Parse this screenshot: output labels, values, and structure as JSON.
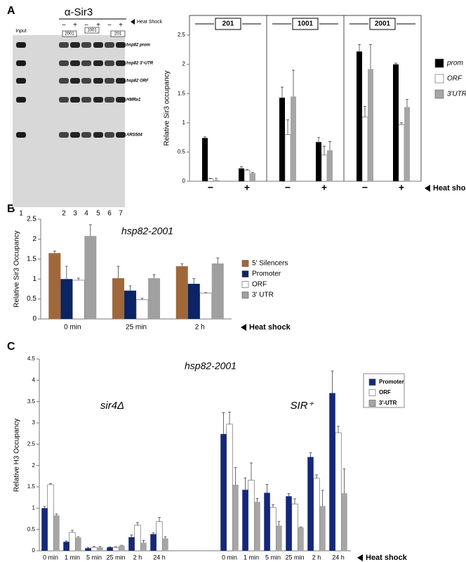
{
  "panels": [
    "A",
    "B",
    "C"
  ],
  "gel": {
    "antibody": "α-Sir3",
    "input": "Input",
    "heat_shock": "Heat Shock",
    "treatments": [
      "−",
      "+",
      "−",
      "+",
      "−",
      "+"
    ],
    "constructs": [
      "2001",
      "1001",
      "201"
    ],
    "bands": [
      "hsp82 prom",
      "hsp82 3'-UTR",
      "hsp82 ORF",
      "HMRa1",
      "ARS504"
    ],
    "lanes": [
      "1",
      "2",
      "3",
      "4",
      "5",
      "6",
      "7"
    ]
  },
  "chart_data": [
    {
      "type": "bar",
      "ylabel": "Relative Sir3 occupancy",
      "xlabel": "Heat shock",
      "categories": [
        "−",
        "+",
        "−",
        "+",
        "−",
        "+"
      ],
      "groups": [
        "201",
        "1001",
        "2001"
      ],
      "series": [
        {
          "name": "prom",
          "color": "#000000",
          "values": [
            0.74,
            0.22,
            1.43,
            0.67,
            2.22,
            2.0
          ],
          "errors": [
            0.02,
            0.03,
            0.18,
            0.08,
            0.12,
            0.02
          ]
        },
        {
          "name": "ORF",
          "color": "#ffffff",
          "values": [
            0.04,
            0.19,
            0.8,
            0.45,
            1.1,
            0.97
          ],
          "errors": [
            0.01,
            0.01,
            0.25,
            0.15,
            0.18,
            0.03
          ]
        },
        {
          "name": "3'UTR",
          "color": "#a6a6a6",
          "values": [
            0.02,
            0.14,
            1.45,
            0.53,
            1.92,
            1.27
          ],
          "errors": [
            0.03,
            0.01,
            0.45,
            0.15,
            0.42,
            0.13
          ]
        }
      ],
      "ylim": [
        0,
        2.5
      ],
      "yticks": [
        0,
        0.5,
        1,
        1.5,
        2,
        2.5
      ]
    },
    {
      "type": "bar",
      "title": "hsp82-2001",
      "ylabel": "Relative Sir3 Occupancy",
      "xlabel": "Heat shock",
      "categories": [
        "0 min",
        "25 min",
        "2 h"
      ],
      "series": [
        {
          "name": "5' Silencers",
          "color": "#a0683a",
          "values": [
            1.65,
            1.02,
            1.32
          ],
          "errors": [
            0.05,
            0.3,
            0.06
          ]
        },
        {
          "name": "Promoter",
          "color": "#0b2463",
          "values": [
            1.0,
            0.71,
            0.88
          ],
          "errors": [
            0.32,
            0.12,
            0.13
          ]
        },
        {
          "name": "ORF",
          "color": "#ffffff",
          "values": [
            0.97,
            0.48,
            0.65
          ],
          "errors": [
            0.05,
            0.04,
            0.01
          ]
        },
        {
          "name": "3' UTR",
          "color": "#a0a0a0",
          "values": [
            2.08,
            1.02,
            1.39
          ],
          "errors": [
            0.28,
            0.09,
            0.14
          ]
        }
      ],
      "ylim": [
        0,
        2.5
      ],
      "yticks": [
        0,
        0.5,
        1,
        1.5,
        2,
        2.5
      ]
    },
    {
      "type": "bar",
      "title": "hsp82-2001",
      "ylabel": "Relative H3 Occupancy",
      "xlabel": "Heat shock",
      "groups": [
        "sir4Δ",
        "SIR⁺"
      ],
      "categories": [
        "0 min",
        "1 min",
        "5 min",
        "25 min",
        "2 h",
        "24 h",
        "0 min",
        "1 min",
        "5 min",
        "25 min",
        "2 h",
        "24 h"
      ],
      "series": [
        {
          "name": "Promoter",
          "color": "#14287a",
          "values": [
            1.0,
            0.21,
            0.06,
            0.08,
            0.32,
            0.39,
            2.74,
            1.43,
            1.36,
            1.28,
            2.2,
            3.7
          ],
          "errors": [
            0.04,
            0.02,
            0.02,
            0.01,
            0.05,
            0.03,
            0.5,
            0.28,
            0.2,
            0.06,
            0.1,
            0.52
          ]
        },
        {
          "name": "ORF",
          "color": "#ffffff",
          "values": [
            1.55,
            0.43,
            0.08,
            0.08,
            0.6,
            0.68,
            2.97,
            1.66,
            1.02,
            1.1,
            1.7,
            2.77
          ],
          "errors": [
            0.03,
            0.05,
            0.02,
            0.01,
            0.06,
            0.1,
            0.28,
            0.4,
            0.06,
            0.12,
            0.08,
            0.15
          ]
        },
        {
          "name": "3'-UTR",
          "color": "#a6a6a6",
          "values": [
            0.83,
            0.31,
            0.08,
            0.12,
            0.19,
            0.29,
            1.55,
            1.15,
            0.59,
            0.55,
            1.05,
            1.35
          ],
          "errors": [
            0.03,
            0.02,
            0.02,
            0.01,
            0.05,
            0.04,
            0.4,
            0.08,
            0.1,
            0.01,
            0.37,
            0.57
          ]
        }
      ],
      "ylim": [
        0,
        4.5
      ],
      "yticks": [
        0,
        0.5,
        1,
        1.5,
        2,
        2.5,
        3,
        3.5,
        4,
        4.5
      ]
    }
  ]
}
